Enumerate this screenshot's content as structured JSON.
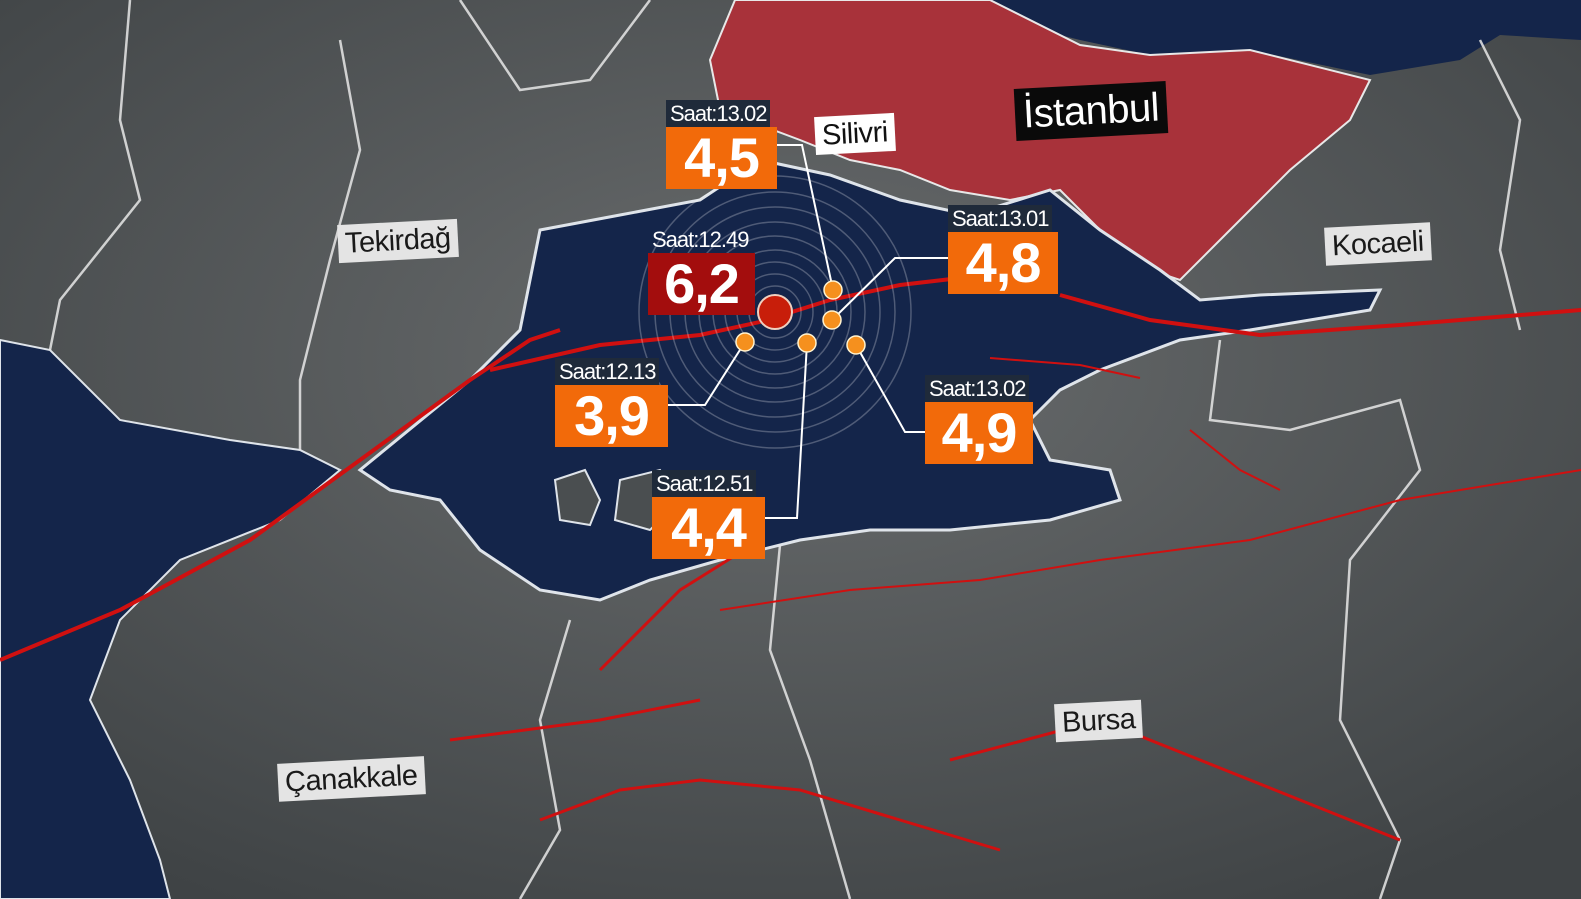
{
  "places": {
    "tekirdag": "Tekirdağ",
    "silivri": "Silivri",
    "istanbul": "İstanbul",
    "kocaeli": "Kocaeli",
    "bursa": "Bursa",
    "canakkale": "Çanakkale"
  },
  "quakes": [
    {
      "time": "Saat:13.02",
      "magnitude": "4,5"
    },
    {
      "time": "Saat:12.49",
      "magnitude": "6,2"
    },
    {
      "time": "Saat:13.01",
      "magnitude": "4,8"
    },
    {
      "time": "Saat:12.13",
      "magnitude": "3,9"
    },
    {
      "time": "Saat:13.02",
      "magnitude": "4,9"
    },
    {
      "time": "Saat:12.51",
      "magnitude": "4,4"
    }
  ],
  "colors": {
    "land": "#55595b",
    "sea": "#14254a",
    "istanbul_region": "#a8323a",
    "fault_lines": "#d01010",
    "aftershock_marker": "#f5901e",
    "main_shock_marker": "#c81e0a",
    "magnitude_box": "#f26a0a",
    "main_magnitude_box": "#a30d0d"
  }
}
